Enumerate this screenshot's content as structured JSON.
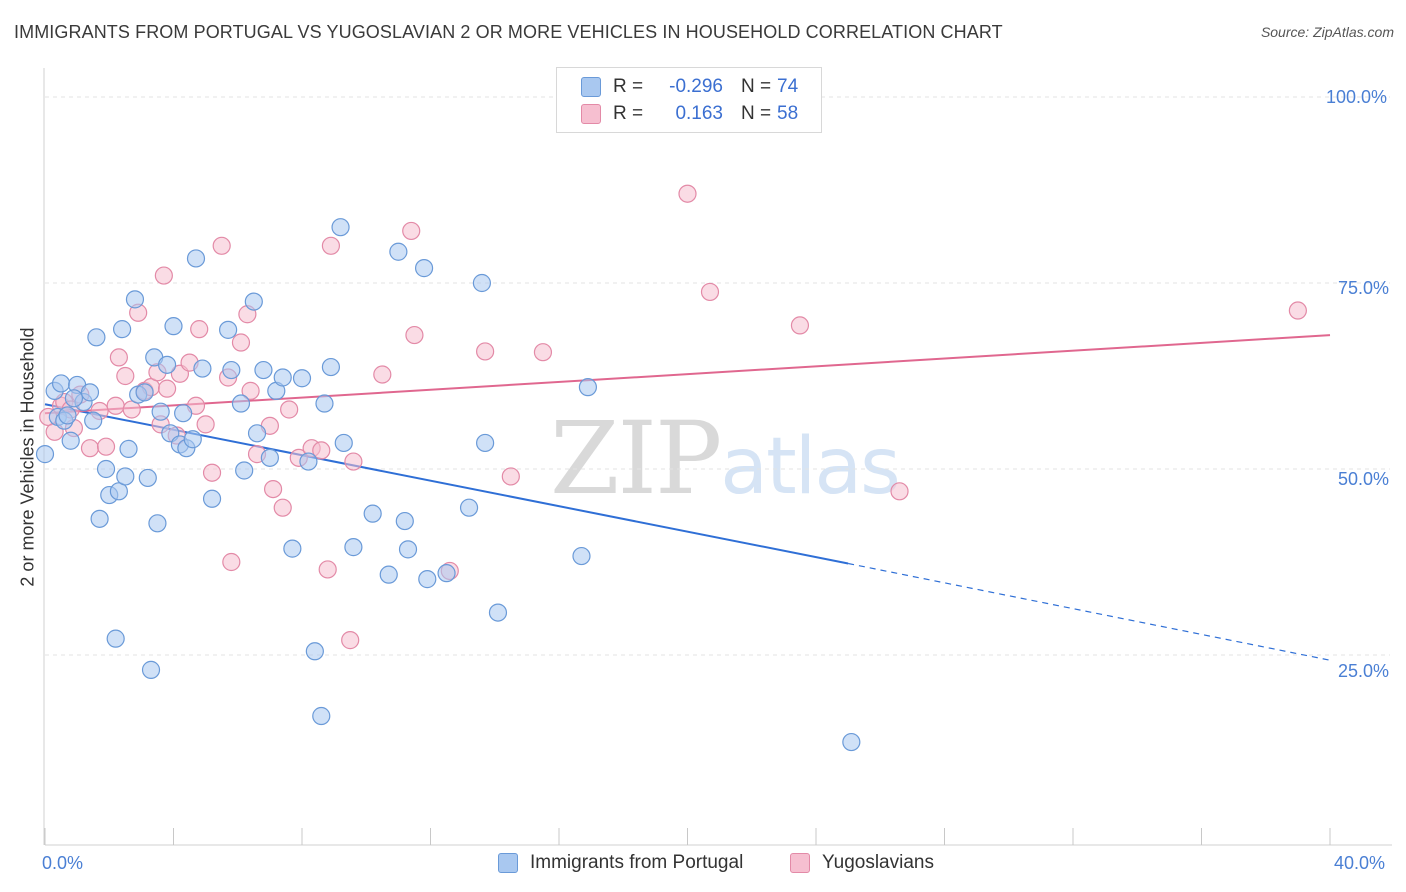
{
  "header": {
    "title": "IMMIGRANTS FROM PORTUGAL VS YUGOSLAVIAN 2 OR MORE VEHICLES IN HOUSEHOLD CORRELATION CHART",
    "source": "Source: ZipAtlas.com"
  },
  "legend": {
    "portugal": {
      "r_label": "R =",
      "r_value": "-0.296",
      "n_label": "N =",
      "n_value": "74"
    },
    "yugoslavians": {
      "r_label": "R =",
      "r_value": "0.163",
      "n_label": "N =",
      "n_value": "58"
    }
  },
  "bottom_legend": {
    "portugal": "Immigrants from Portugal",
    "yugoslavians": "Yugoslavians"
  },
  "watermark": {
    "zip": "ZIP",
    "atlas": "atlas"
  },
  "colors": {
    "blue_fill": "#a9c8f0",
    "blue_stroke": "#6a9ad8",
    "blue_line": "#2f6fd6",
    "pink_fill": "#f6bfd0",
    "pink_stroke": "#e38aa7",
    "pink_line": "#e0678f",
    "tick_color": "#4a7fd4",
    "grid": "#e3e3e3"
  },
  "chart_data": {
    "type": "scatter",
    "title": "IMMIGRANTS FROM PORTUGAL VS YUGOSLAVIAN 2 OR MORE VEHICLES IN HOUSEHOLD CORRELATION CHART",
    "xlabel": "",
    "ylabel": "2 or more Vehicles in Household",
    "xlim": [
      0,
      40
    ],
    "ylim": [
      2,
      105
    ],
    "x_tick_labels": [
      "0.0%",
      "40.0%"
    ],
    "y_ticks": [
      25,
      50,
      75,
      100
    ],
    "y_tick_labels": [
      "25.0%",
      "50.0%",
      "75.0%",
      "100.0%"
    ],
    "grid": true,
    "legend_position": "top-center",
    "series": [
      {
        "name": "Immigrants from Portugal",
        "color": "#a9c8f0",
        "trend": {
          "x0": 0,
          "y0": 58.7,
          "x1": 25,
          "y1": 37.3,
          "dashed_to_x": 40,
          "dashed_to_y": 24.3
        },
        "points": [
          [
            0.0,
            52.0
          ],
          [
            0.3,
            60.5
          ],
          [
            0.4,
            57.0
          ],
          [
            0.5,
            61.5
          ],
          [
            0.6,
            56.5
          ],
          [
            0.7,
            57.2
          ],
          [
            0.8,
            53.8
          ],
          [
            1.0,
            61.3
          ],
          [
            1.2,
            59.0
          ],
          [
            1.4,
            60.3
          ],
          [
            1.5,
            56.5
          ],
          [
            1.6,
            67.7
          ],
          [
            1.7,
            43.3
          ],
          [
            1.9,
            50.0
          ],
          [
            2.0,
            46.5
          ],
          [
            2.2,
            27.2
          ],
          [
            2.3,
            47.0
          ],
          [
            2.4,
            68.8
          ],
          [
            2.5,
            49.0
          ],
          [
            2.6,
            52.7
          ],
          [
            2.8,
            72.8
          ],
          [
            2.9,
            60.0
          ],
          [
            3.1,
            60.3
          ],
          [
            3.2,
            48.8
          ],
          [
            3.3,
            23.0
          ],
          [
            3.4,
            65.0
          ],
          [
            3.5,
            42.7
          ],
          [
            3.6,
            57.7
          ],
          [
            3.8,
            64.0
          ],
          [
            3.9,
            54.8
          ],
          [
            4.0,
            69.2
          ],
          [
            4.2,
            53.3
          ],
          [
            4.3,
            57.5
          ],
          [
            4.4,
            52.8
          ],
          [
            4.6,
            54.0
          ],
          [
            4.7,
            78.3
          ],
          [
            4.9,
            63.5
          ],
          [
            5.2,
            46.0
          ],
          [
            5.7,
            68.7
          ],
          [
            5.8,
            63.3
          ],
          [
            6.1,
            58.8
          ],
          [
            6.2,
            49.8
          ],
          [
            6.5,
            72.5
          ],
          [
            6.6,
            54.8
          ],
          [
            6.8,
            63.3
          ],
          [
            7.0,
            51.5
          ],
          [
            7.2,
            60.5
          ],
          [
            7.4,
            62.3
          ],
          [
            7.7,
            39.3
          ],
          [
            8.0,
            62.2
          ],
          [
            8.2,
            51.0
          ],
          [
            8.4,
            25.5
          ],
          [
            8.6,
            16.8
          ],
          [
            8.7,
            58.8
          ],
          [
            8.9,
            63.7
          ],
          [
            9.2,
            82.5
          ],
          [
            9.3,
            53.5
          ],
          [
            9.6,
            39.5
          ],
          [
            10.2,
            44.0
          ],
          [
            10.7,
            35.8
          ],
          [
            11.0,
            79.2
          ],
          [
            11.2,
            43.0
          ],
          [
            11.3,
            39.2
          ],
          [
            11.8,
            77.0
          ],
          [
            11.9,
            35.2
          ],
          [
            12.5,
            36.0
          ],
          [
            13.2,
            44.8
          ],
          [
            13.6,
            75.0
          ],
          [
            13.7,
            53.5
          ],
          [
            14.1,
            30.7
          ],
          [
            16.7,
            38.3
          ],
          [
            16.9,
            61.0
          ],
          [
            25.1,
            13.3
          ],
          [
            0.9,
            59.5
          ]
        ]
      },
      {
        "name": "Yugoslavians",
        "color": "#f6bfd0",
        "trend": {
          "x0": 0,
          "y0": 57.5,
          "x1": 40,
          "y1": 68.0
        },
        "points": [
          [
            0.1,
            57.0
          ],
          [
            0.3,
            55.0
          ],
          [
            0.5,
            58.5
          ],
          [
            0.6,
            59.0
          ],
          [
            0.8,
            58.0
          ],
          [
            0.9,
            55.5
          ],
          [
            1.1,
            60.0
          ],
          [
            1.4,
            52.8
          ],
          [
            1.7,
            57.8
          ],
          [
            1.9,
            53.0
          ],
          [
            2.2,
            58.5
          ],
          [
            2.3,
            65.0
          ],
          [
            2.5,
            62.5
          ],
          [
            2.7,
            58.0
          ],
          [
            2.9,
            71.0
          ],
          [
            3.1,
            60.5
          ],
          [
            3.3,
            61.0
          ],
          [
            3.5,
            63.0
          ],
          [
            3.6,
            56.0
          ],
          [
            3.8,
            60.8
          ],
          [
            3.7,
            76.0
          ],
          [
            4.1,
            54.5
          ],
          [
            4.2,
            62.8
          ],
          [
            4.5,
            64.3
          ],
          [
            4.7,
            58.5
          ],
          [
            4.8,
            68.8
          ],
          [
            5.0,
            56.0
          ],
          [
            5.2,
            49.5
          ],
          [
            5.5,
            80.0
          ],
          [
            5.7,
            62.3
          ],
          [
            5.8,
            37.5
          ],
          [
            6.1,
            67.0
          ],
          [
            6.3,
            70.8
          ],
          [
            6.4,
            60.5
          ],
          [
            6.6,
            52.0
          ],
          [
            7.0,
            55.8
          ],
          [
            7.1,
            47.3
          ],
          [
            7.4,
            44.8
          ],
          [
            7.6,
            58.0
          ],
          [
            7.9,
            51.5
          ],
          [
            8.3,
            52.8
          ],
          [
            8.6,
            52.5
          ],
          [
            8.8,
            36.5
          ],
          [
            8.9,
            80.0
          ],
          [
            9.5,
            27.0
          ],
          [
            9.6,
            51.0
          ],
          [
            10.5,
            62.7
          ],
          [
            11.4,
            82.0
          ],
          [
            11.5,
            68.0
          ],
          [
            12.6,
            36.3
          ],
          [
            13.7,
            65.8
          ],
          [
            14.5,
            49.0
          ],
          [
            15.5,
            65.7
          ],
          [
            20.0,
            87.0
          ],
          [
            20.7,
            73.8
          ],
          [
            23.5,
            69.3
          ],
          [
            26.6,
            47.0
          ],
          [
            39.0,
            71.3
          ]
        ]
      }
    ]
  }
}
